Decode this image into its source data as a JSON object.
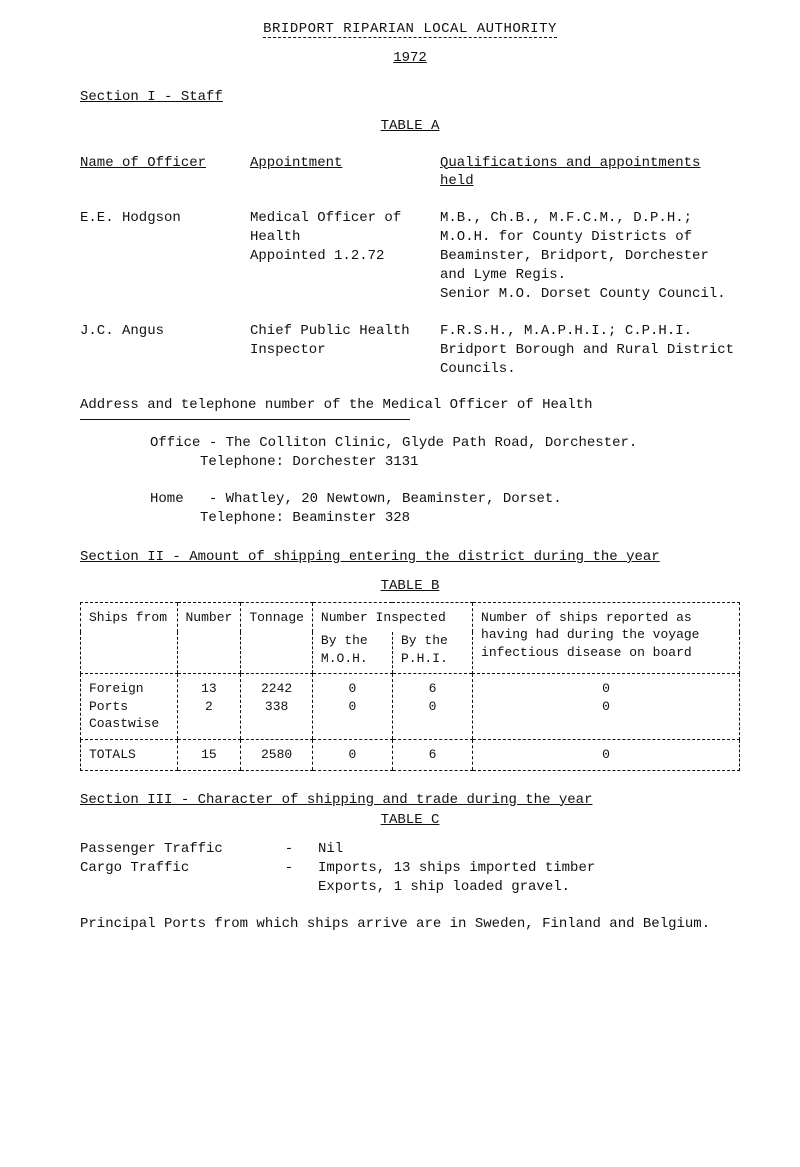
{
  "header": {
    "title_line": "BRIDPORT RIPARIAN LOCAL AUTHORITY",
    "year": "1972"
  },
  "section1": {
    "title": "Section I - Staff",
    "table_label": "TABLE A",
    "col_headers": {
      "name": "Name of Officer",
      "appointment": "Appointment",
      "qualifications": "Qualifications and appointments held"
    },
    "rows": [
      {
        "name": "E.E. Hodgson",
        "appointment": "Medical Officer of Health\nAppointed 1.2.72",
        "qualifications": "M.B., Ch.B., M.F.C.M., D.P.H.; M.O.H. for County Districts of Beaminster, Bridport, Dorchester and Lyme Regis.\nSenior M.O. Dorset County Council."
      },
      {
        "name": "J.C. Angus",
        "appointment": "Chief Public Health Inspector",
        "qualifications": "F.R.S.H., M.A.P.H.I.; C.P.H.I. Bridport Borough and Rural District Councils."
      }
    ],
    "address_heading": "Address and telephone number of the Medical Officer of Health",
    "office": {
      "label": "Office",
      "text": "- The Colliton Clinic, Glyde Path Road, Dorchester.",
      "tel": "Telephone: Dorchester 3131"
    },
    "home": {
      "label": "Home",
      "text": "- Whatley, 20 Newtown, Beaminster, Dorset.",
      "tel": "Telephone: Beaminster 328"
    }
  },
  "section2": {
    "title": "Section II - Amount of shipping entering the district during the year",
    "table_label": "TABLE B",
    "columns": {
      "ships_from": "Ships from",
      "number": "Number",
      "tonnage": "Tonnage",
      "inspected_header": "Number Inspected",
      "by_moh": "By the M.O.H.",
      "by_phi": "By the P.H.I.",
      "result": "Number of ships reported as having had during the voyage infectious disease on board"
    },
    "rows": [
      {
        "ships_from": "Foreign Ports",
        "number": "13",
        "tonnage": "2242",
        "by_moh": "0",
        "by_phi": "6",
        "result": "0"
      },
      {
        "ships_from": "Coastwise",
        "number": "2",
        "tonnage": "338",
        "by_moh": "0",
        "by_phi": "0",
        "result": "0"
      }
    ],
    "totals": {
      "label": "TOTALS",
      "number": "15",
      "tonnage": "2580",
      "by_moh": "0",
      "by_phi": "6",
      "result": "0"
    }
  },
  "section3": {
    "title": "Section III - Character of shipping and trade during the year",
    "table_label": "TABLE C",
    "passenger": {
      "label": "Passenger Traffic",
      "value": "Nil"
    },
    "cargo": {
      "label": "Cargo Traffic",
      "imports": "Imports, 13 ships imported timber",
      "exports": "Exports, 1 ship loaded gravel."
    },
    "footer": "Principal Ports from which ships arrive are in Sweden, Finland and Belgium."
  }
}
